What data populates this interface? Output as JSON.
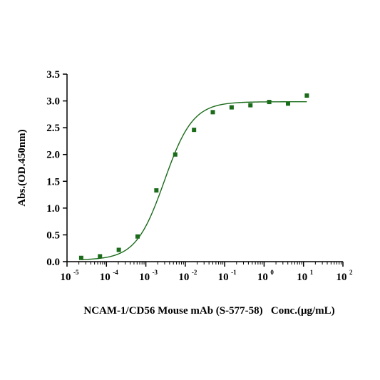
{
  "chart_data": {
    "type": "scatter",
    "title": "",
    "xlabel": "NCAM-1/CD56 Mouse mAb (S-577-58)   Conc.(μg/mL)",
    "ylabel": "Abs.(OD.450nm)",
    "x_scale": "log",
    "xlim": [
      1e-05,
      100
    ],
    "ylim": [
      0,
      3.5
    ],
    "x_ticks": [
      {
        "base": "10",
        "exp": "-5",
        "value": 1e-05
      },
      {
        "base": "10",
        "exp": "-4",
        "value": 0.0001
      },
      {
        "base": "10",
        "exp": "-3",
        "value": 0.001
      },
      {
        "base": "10",
        "exp": "-2",
        "value": 0.01
      },
      {
        "base": "10",
        "exp": "-1",
        "value": 0.1
      },
      {
        "base": "10",
        "exp": "0",
        "value": 1
      },
      {
        "base": "10",
        "exp": "1",
        "value": 10
      },
      {
        "base": "10",
        "exp": "2",
        "value": 100
      }
    ],
    "y_ticks": [
      "0.0",
      "0.5",
      "1.0",
      "1.5",
      "2.0",
      "2.5",
      "3.0",
      "3.5"
    ],
    "y_tick_values": [
      0,
      0.5,
      1.0,
      1.5,
      2.0,
      2.5,
      3.0,
      3.5
    ],
    "grid": false,
    "legend": "none",
    "series": [
      {
        "color": "#1a6b1a",
        "points": [
          {
            "x": 2.29e-05,
            "y": 0.07
          },
          {
            "x": 6.86e-05,
            "y": 0.1
          },
          {
            "x": 0.000206,
            "y": 0.22
          },
          {
            "x": 0.000617,
            "y": 0.47
          },
          {
            "x": 0.00185,
            "y": 1.33
          },
          {
            "x": 0.00556,
            "y": 2.0
          },
          {
            "x": 0.0167,
            "y": 2.46
          },
          {
            "x": 0.05,
            "y": 2.79
          },
          {
            "x": 0.15,
            "y": 2.88
          },
          {
            "x": 0.45,
            "y": 2.92
          },
          {
            "x": 1.35,
            "y": 2.98
          },
          {
            "x": 4.05,
            "y": 2.95
          },
          {
            "x": 12.15,
            "y": 3.1
          }
        ],
        "fit": {
          "model": "4PL",
          "bottom": 0.03,
          "top": 2.985,
          "ec50": 0.00295,
          "hill": 1.2,
          "x_range": [
            2.29e-05,
            12.15
          ]
        }
      }
    ],
    "colors": {
      "axis": "#000000",
      "series": "#1a6b1a"
    }
  }
}
